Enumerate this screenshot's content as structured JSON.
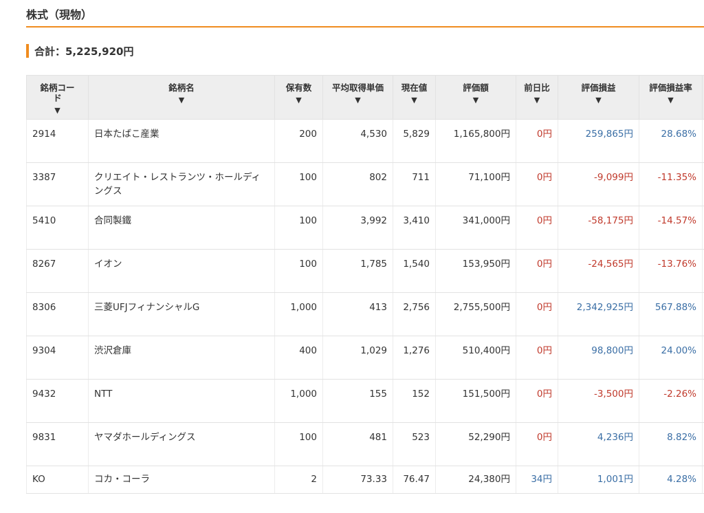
{
  "section_title": "株式（現物）",
  "total_label": "合計：5,225,920円",
  "columns": {
    "code": "銘柄コード",
    "name": "銘柄名",
    "qty": "保有数",
    "avg_cost": "平均取得単価",
    "price": "現在値",
    "value": "評価額",
    "day_change": "前日比",
    "pl": "評価損益",
    "pl_rate": "評価損益率",
    "sort_icon": "▼"
  },
  "rows": [
    {
      "code": "2914",
      "name": "日本たばこ産業",
      "qty": "200",
      "avg_cost": "4,530",
      "price": "5,829",
      "value": "1,165,800円",
      "day_change": "0円",
      "day_dir": "neu",
      "pl": "259,865円",
      "pl_rate": "28.68%",
      "pl_dir": "pos"
    },
    {
      "code": "3387",
      "name": "クリエイト・レストランツ・ホールディングス",
      "qty": "100",
      "avg_cost": "802",
      "price": "711",
      "value": "71,100円",
      "day_change": "0円",
      "day_dir": "neu",
      "pl": "-9,099円",
      "pl_rate": "-11.35%",
      "pl_dir": "neg"
    },
    {
      "code": "5410",
      "name": "合同製鐵",
      "qty": "100",
      "avg_cost": "3,992",
      "price": "3,410",
      "value": "341,000円",
      "day_change": "0円",
      "day_dir": "neu",
      "pl": "-58,175円",
      "pl_rate": "-14.57%",
      "pl_dir": "neg"
    },
    {
      "code": "8267",
      "name": "イオン",
      "qty": "100",
      "avg_cost": "1,785",
      "price": "1,540",
      "value": "153,950円",
      "day_change": "0円",
      "day_dir": "neu",
      "pl": "-24,565円",
      "pl_rate": "-13.76%",
      "pl_dir": "neg"
    },
    {
      "code": "8306",
      "name": "三菱UFJフィナンシャルG",
      "qty": "1,000",
      "avg_cost": "413",
      "price": "2,756",
      "value": "2,755,500円",
      "day_change": "0円",
      "day_dir": "neu",
      "pl": "2,342,925円",
      "pl_rate": "567.88%",
      "pl_dir": "pos"
    },
    {
      "code": "9304",
      "name": "渋沢倉庫",
      "qty": "400",
      "avg_cost": "1,029",
      "price": "1,276",
      "value": "510,400円",
      "day_change": "0円",
      "day_dir": "neu",
      "pl": "98,800円",
      "pl_rate": "24.00%",
      "pl_dir": "pos"
    },
    {
      "code": "9432",
      "name": "NTT",
      "qty": "1,000",
      "avg_cost": "155",
      "price": "152",
      "value": "151,500円",
      "day_change": "0円",
      "day_dir": "neu",
      "pl": "-3,500円",
      "pl_rate": "-2.26%",
      "pl_dir": "neg"
    },
    {
      "code": "9831",
      "name": "ヤマダホールディングス",
      "qty": "100",
      "avg_cost": "481",
      "price": "523",
      "value": "52,290円",
      "day_change": "0円",
      "day_dir": "neu",
      "pl": "4,236円",
      "pl_rate": "8.82%",
      "pl_dir": "pos"
    },
    {
      "code": "KO",
      "name": "コカ・コーラ",
      "qty": "2",
      "avg_cost": "73.33",
      "price": "76.47",
      "value": "24,380円",
      "day_change": "34円",
      "day_dir": "pos",
      "pl": "1,001円",
      "pl_rate": "4.28%",
      "pl_dir": "pos"
    }
  ],
  "colors": {
    "accent": "#f08c1e",
    "positive": "#3a6ea5",
    "negative": "#c0392b",
    "header_bg": "#eeeeee"
  }
}
